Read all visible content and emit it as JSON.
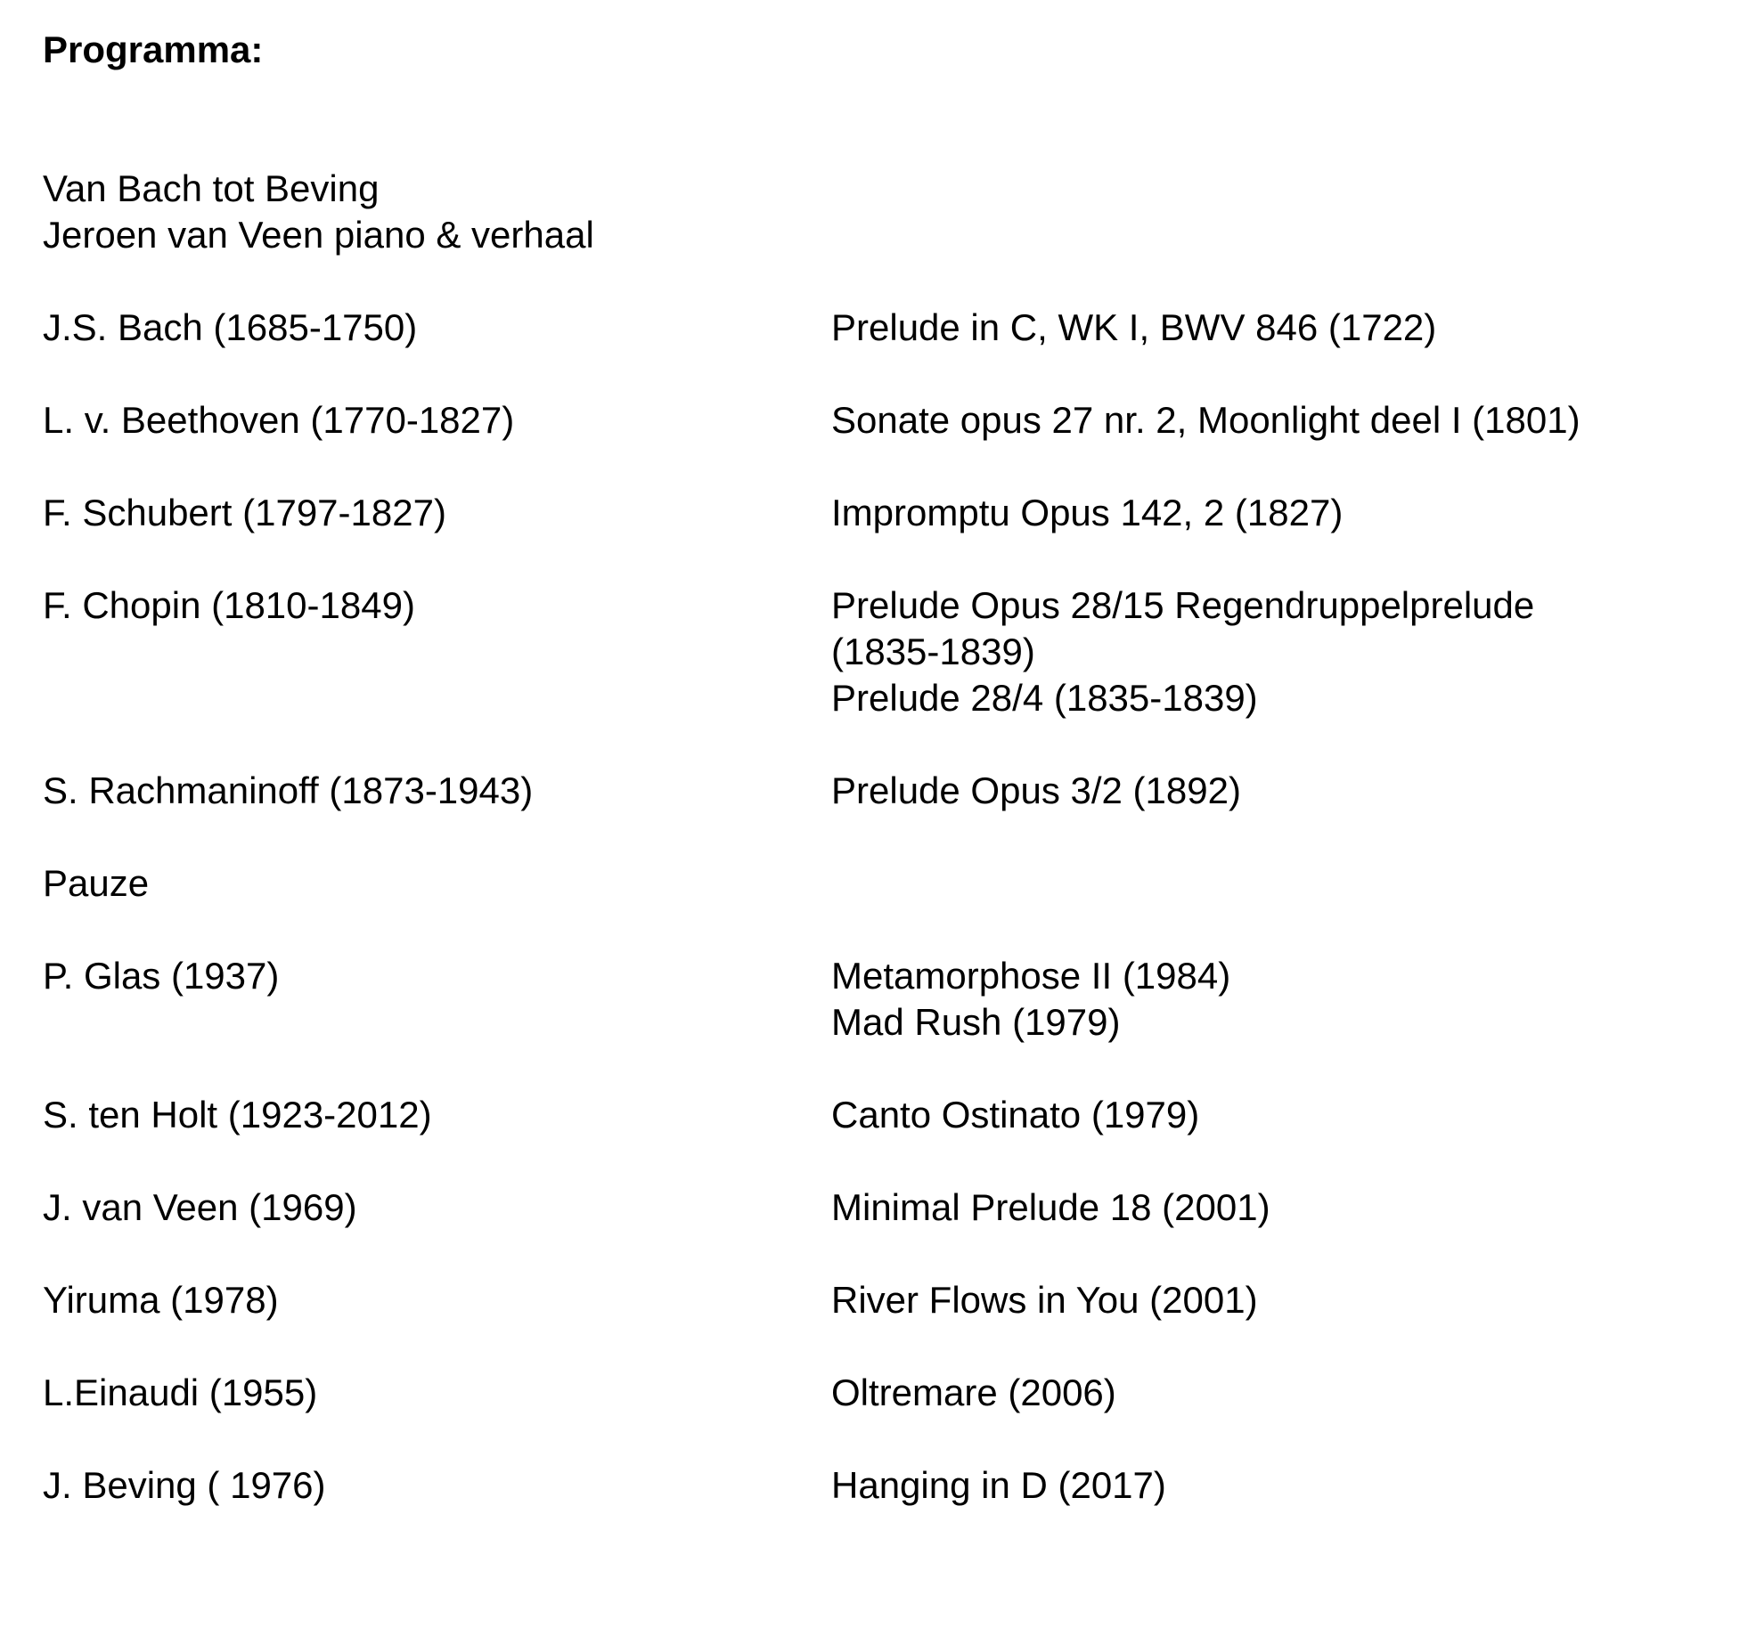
{
  "document": {
    "title": "Programma:",
    "subtitle_lines": {
      "line1": "Van Bach tot Beving",
      "line2": "Jeroen van Veen piano & verhaal"
    },
    "entries": [
      {
        "composer": "J.S. Bach (1685-1750)",
        "pieces": [
          "Prelude in C, WK I, BWV 846 (1722)"
        ]
      },
      {
        "composer": "L. v. Beethoven (1770-1827)",
        "pieces": [
          "Sonate opus 27 nr. 2, Moonlight deel I (1801)"
        ]
      },
      {
        "composer": "F. Schubert (1797-1827)",
        "pieces": [
          "Impromptu Opus 142, 2 (1827)"
        ]
      },
      {
        "composer": "F. Chopin (1810-1849)",
        "pieces": [
          "Prelude Opus 28/15 Regendruppelprelude",
          "(1835-1839)",
          "Prelude 28/4 (1835-1839)"
        ]
      },
      {
        "composer": "S. Rachmaninoff (1873-1943)",
        "pieces": [
          "Prelude Opus 3/2 (1892)"
        ]
      },
      {
        "composer": "Pauze",
        "pieces": []
      },
      {
        "composer": "P. Glas (1937)",
        "pieces": [
          "Metamorphose II (1984)",
          "Mad Rush (1979)"
        ]
      },
      {
        "composer": "S. ten Holt (1923-2012)",
        "pieces": [
          "Canto Ostinato (1979)"
        ]
      },
      {
        "composer": "J. van Veen (1969)",
        "pieces": [
          "Minimal Prelude 18 (2001)"
        ]
      },
      {
        "composer": "Yiruma (1978)",
        "pieces": [
          "River Flows in You (2001)"
        ]
      },
      {
        "composer": "L.Einaudi (1955)",
        "pieces": [
          "Oltremare (2006)"
        ]
      },
      {
        "composer": "J. Beving ( 1976)",
        "pieces": [
          "Hanging in D (2017)"
        ]
      }
    ],
    "colors": {
      "background": "#ffffff",
      "text": "#000000"
    }
  }
}
